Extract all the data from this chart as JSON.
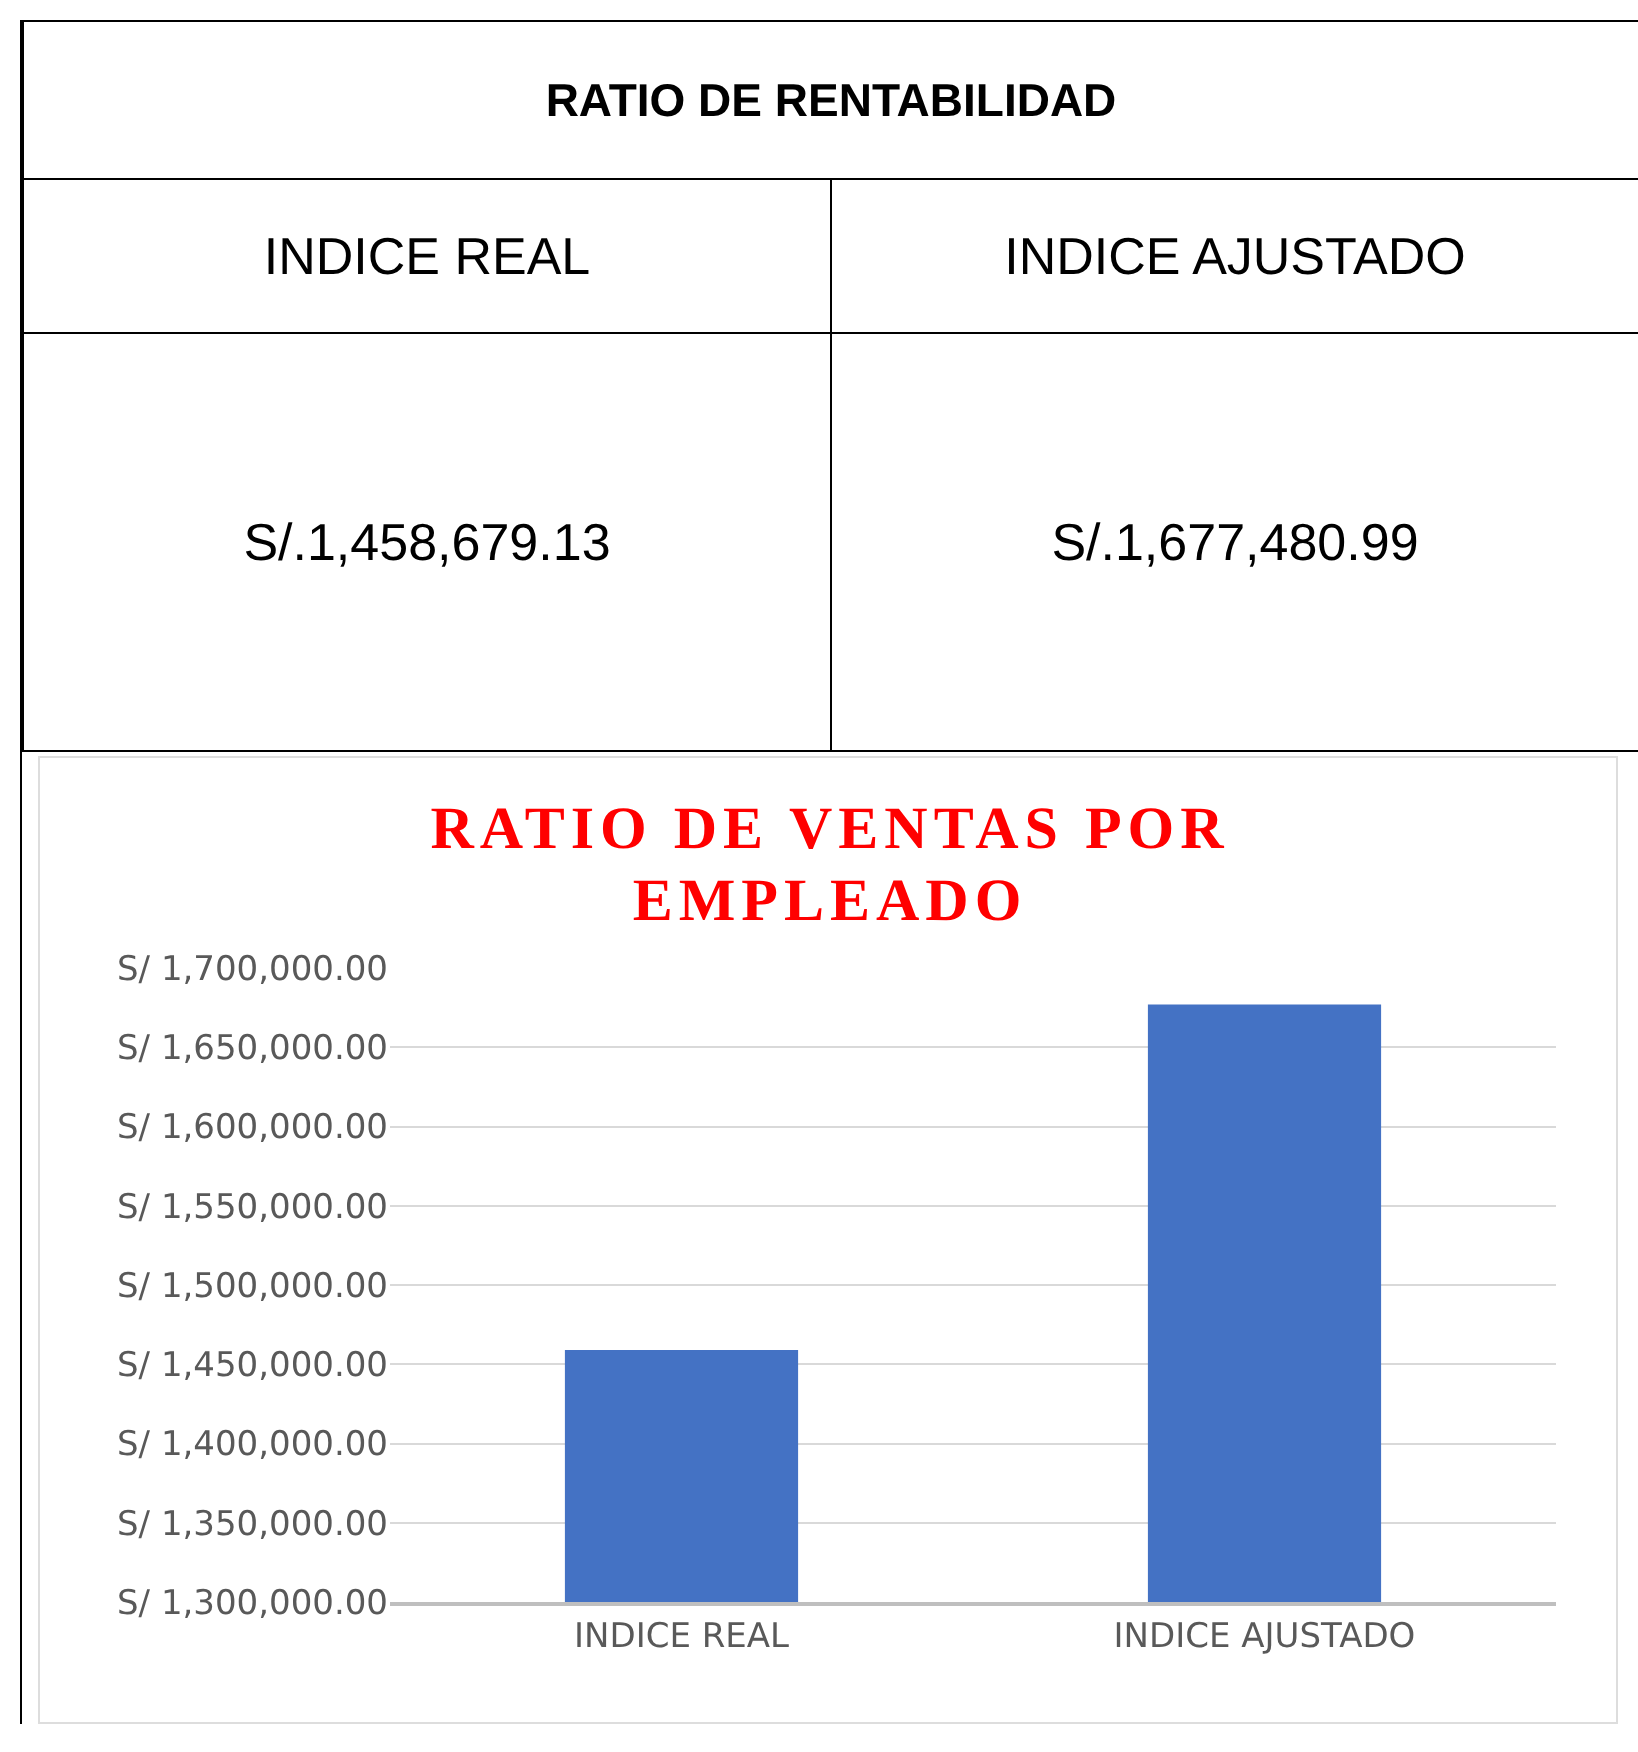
{
  "chart_data": [
    {
      "type": "other",
      "title": "RATIO DE RENTABILIDAD",
      "annotations": [
        "INDICE REAL",
        "INDICE AJUSTADO",
        "S/.1,458,679.13",
        "S/.1,677,480.99"
      ]
    },
    {
      "type": "bar",
      "title": "RATIO DE VENTAS POR EMPLEADO",
      "categories": [
        "INDICE REAL",
        "INDICE AJUSTADO"
      ],
      "values": [
        1459000,
        1677000
      ],
      "color": "#4472c4",
      "ylim": [
        1300000,
        1700000
      ],
      "yticks": [
        {
          "value": 1300000,
          "label": "S/ 1,300,000.00"
        },
        {
          "value": 1350000,
          "label": "S/ 1,350,000.00"
        },
        {
          "value": 1400000,
          "label": "S/ 1,400,000.00"
        },
        {
          "value": 1450000,
          "label": "S/ 1,450,000.00"
        },
        {
          "value": 1500000,
          "label": "S/ 1,500,000.00"
        },
        {
          "value": 1550000,
          "label": "S/ 1,550,000.00"
        },
        {
          "value": 1600000,
          "label": "S/ 1,600,000.00"
        },
        {
          "value": 1650000,
          "label": "S/ 1,650,000.00"
        },
        {
          "value": 1700000,
          "label": "S/ 1,700,000.00"
        }
      ],
      "grid": "y"
    }
  ]
}
